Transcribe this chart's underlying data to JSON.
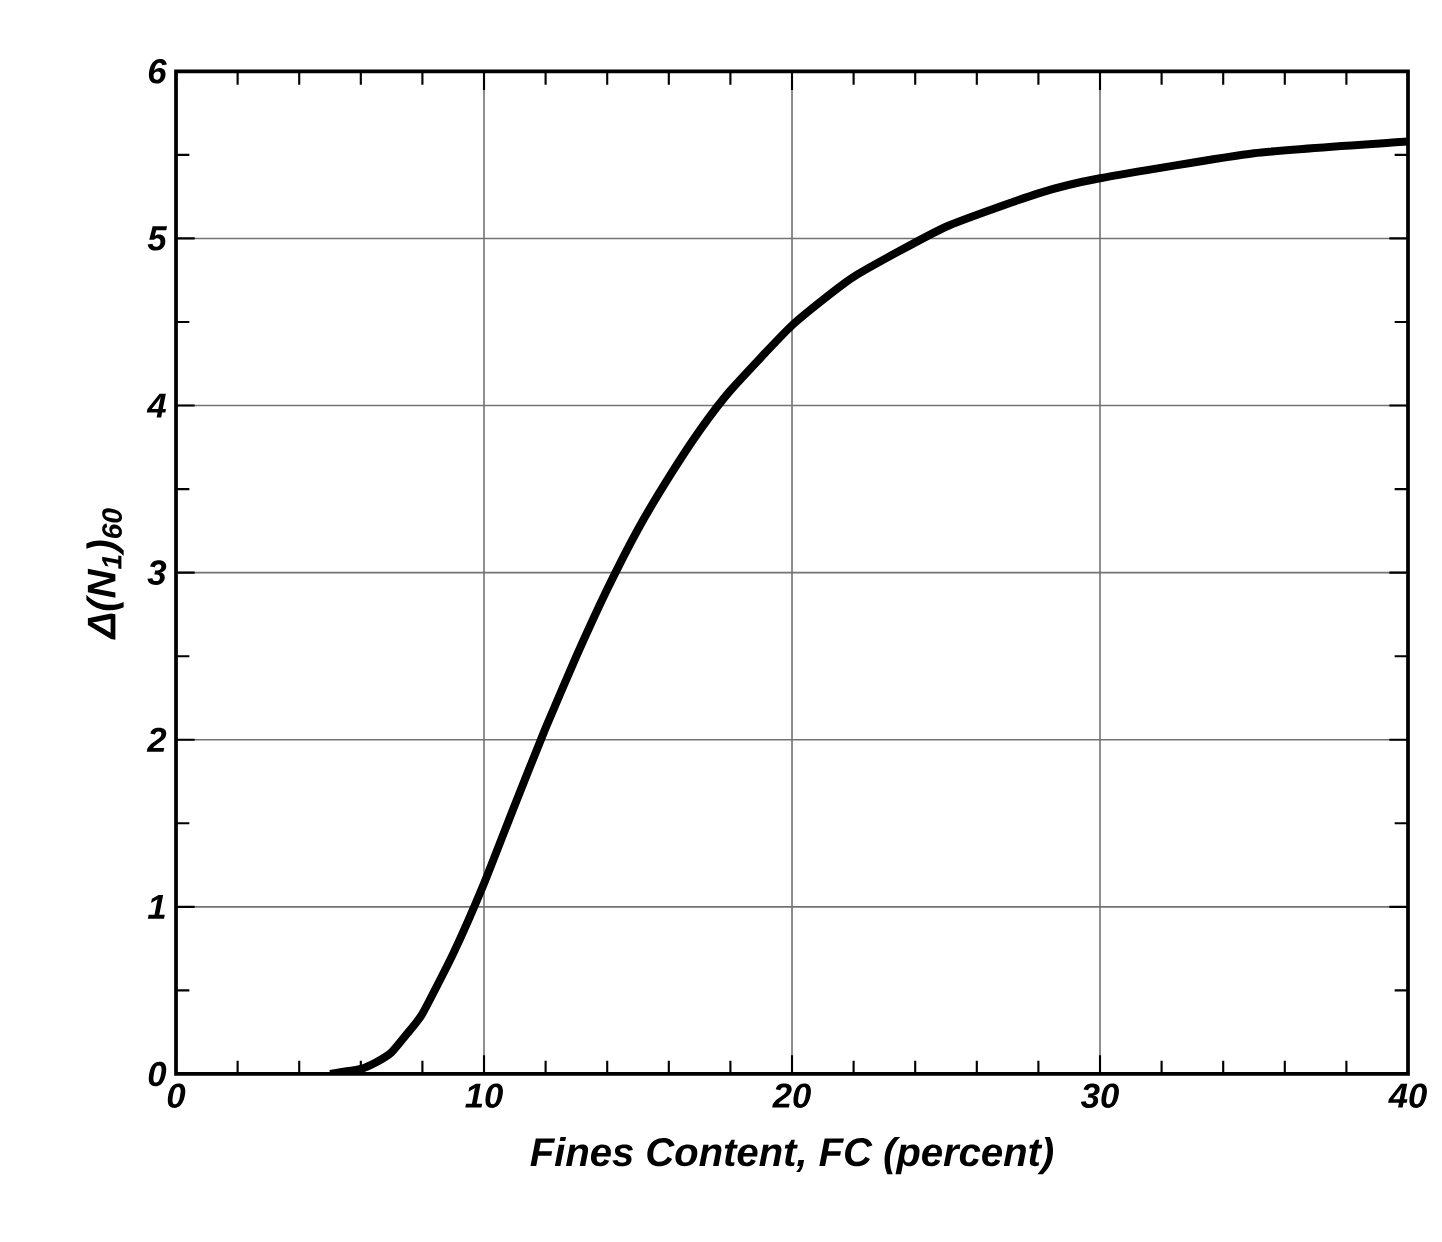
{
  "chart_data": {
    "type": "line",
    "xlabel": "Fines Content, FC (percent)",
    "ylabel": "Δ(N$_{1}$)$_{60}$",
    "x": [
      5,
      6,
      6.5,
      7,
      7.5,
      8,
      9,
      10,
      11,
      12,
      13,
      14,
      15,
      16,
      17,
      18,
      20,
      22,
      25,
      28,
      30,
      35,
      40
    ],
    "values": [
      0,
      0.03,
      0.07,
      0.13,
      0.24,
      0.36,
      0.72,
      1.14,
      1.61,
      2.07,
      2.5,
      2.9,
      3.26,
      3.57,
      3.85,
      4.09,
      4.48,
      4.77,
      5.07,
      5.27,
      5.36,
      5.51,
      5.58
    ],
    "color": "#000000",
    "xlim": [
      0,
      40
    ],
    "ylim": [
      0,
      6
    ],
    "xticks": [
      0,
      10,
      20,
      30,
      40
    ],
    "yticks": [
      0,
      1,
      2,
      3,
      4,
      5,
      6
    ],
    "grid": true,
    "marker": "none",
    "line_style": "solid"
  }
}
